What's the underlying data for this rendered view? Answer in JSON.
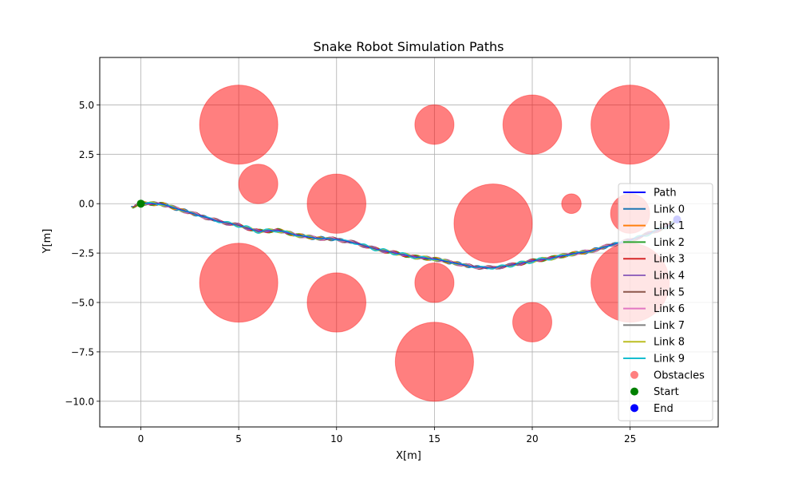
{
  "chart_data": {
    "type": "scatter",
    "title": "Snake Robot Simulation Paths",
    "xlabel": "X[m]",
    "ylabel": "Y[m]",
    "xlim": [
      -2.1,
      29.5
    ],
    "ylim": [
      -11.3,
      7.4
    ],
    "xticks": [
      0,
      5,
      10,
      15,
      20,
      25
    ],
    "xtick_labels": [
      "0",
      "5",
      "10",
      "15",
      "20",
      "25"
    ],
    "yticks": [
      5.0,
      2.5,
      0.0,
      -2.5,
      -5.0,
      -7.5,
      -10.0
    ],
    "ytick_labels": [
      "5.0",
      "2.5",
      "0.0",
      "−2.5",
      "−5.0",
      "−7.5",
      "−10.0"
    ],
    "grid": true,
    "legend_position": "right",
    "obstacles": {
      "name": "Obstacles",
      "color": "#ff0000",
      "alpha": 0.5,
      "circles": [
        {
          "x": 5,
          "y": 4,
          "r": 2
        },
        {
          "x": 6,
          "y": 1,
          "r": 1
        },
        {
          "x": 5,
          "y": -4,
          "r": 2
        },
        {
          "x": 10,
          "y": 0,
          "r": 1.5
        },
        {
          "x": 10,
          "y": -5,
          "r": 1.5
        },
        {
          "x": 15,
          "y": 4,
          "r": 1
        },
        {
          "x": 15,
          "y": -4,
          "r": 1
        },
        {
          "x": 15,
          "y": -8,
          "r": 2
        },
        {
          "x": 18,
          "y": -1,
          "r": 2
        },
        {
          "x": 20,
          "y": 4,
          "r": 1.5
        },
        {
          "x": 20,
          "y": -6,
          "r": 1
        },
        {
          "x": 22,
          "y": 0,
          "r": 0.5
        },
        {
          "x": 25,
          "y": 4,
          "r": 2
        },
        {
          "x": 25,
          "y": -4,
          "r": 2
        },
        {
          "x": 25,
          "y": -0.5,
          "r": 1
        }
      ]
    },
    "path": {
      "name": "Path",
      "color": "#0000ff",
      "points": [
        [
          0,
          0
        ],
        [
          1,
          0
        ],
        [
          2,
          -0.3
        ],
        [
          3,
          -0.6
        ],
        [
          4,
          -0.9
        ],
        [
          5,
          -1.1
        ],
        [
          6,
          -1.4
        ],
        [
          7,
          -1.35
        ],
        [
          8,
          -1.6
        ],
        [
          9,
          -1.75
        ],
        [
          10,
          -1.8
        ],
        [
          11,
          -2.0
        ],
        [
          12,
          -2.3
        ],
        [
          13,
          -2.5
        ],
        [
          14,
          -2.7
        ],
        [
          15,
          -2.8
        ],
        [
          16,
          -3.0
        ],
        [
          17,
          -3.2
        ],
        [
          18,
          -3.25
        ],
        [
          19,
          -3.1
        ],
        [
          20,
          -2.9
        ],
        [
          21,
          -2.75
        ],
        [
          22,
          -2.55
        ],
        [
          23,
          -2.4
        ],
        [
          24,
          -2.1
        ],
        [
          25,
          -1.85
        ],
        [
          26,
          -1.5
        ],
        [
          27,
          -1.1
        ],
        [
          27.4,
          -0.8
        ]
      ]
    },
    "series": [
      {
        "name": "Link 0",
        "color": "#1f77b4"
      },
      {
        "name": "Link 1",
        "color": "#ff7f0e"
      },
      {
        "name": "Link 2",
        "color": "#2ca02c"
      },
      {
        "name": "Link 3",
        "color": "#d62728"
      },
      {
        "name": "Link 4",
        "color": "#9467bd"
      },
      {
        "name": "Link 5",
        "color": "#8c564b"
      },
      {
        "name": "Link 6",
        "color": "#e377c2"
      },
      {
        "name": "Link 7",
        "color": "#7f7f7f"
      },
      {
        "name": "Link 8",
        "color": "#bcbd22"
      },
      {
        "name": "Link 9",
        "color": "#17becf"
      }
    ],
    "start": {
      "name": "Start",
      "x": 0,
      "y": 0,
      "color": "#008000"
    },
    "end": {
      "name": "End",
      "x": 27.4,
      "y": -0.8,
      "color": "#0000ff"
    },
    "legend": [
      "Path",
      "Link 0",
      "Link 1",
      "Link 2",
      "Link 3",
      "Link 4",
      "Link 5",
      "Link 6",
      "Link 7",
      "Link 8",
      "Link 9",
      "Obstacles",
      "Start",
      "End"
    ]
  }
}
